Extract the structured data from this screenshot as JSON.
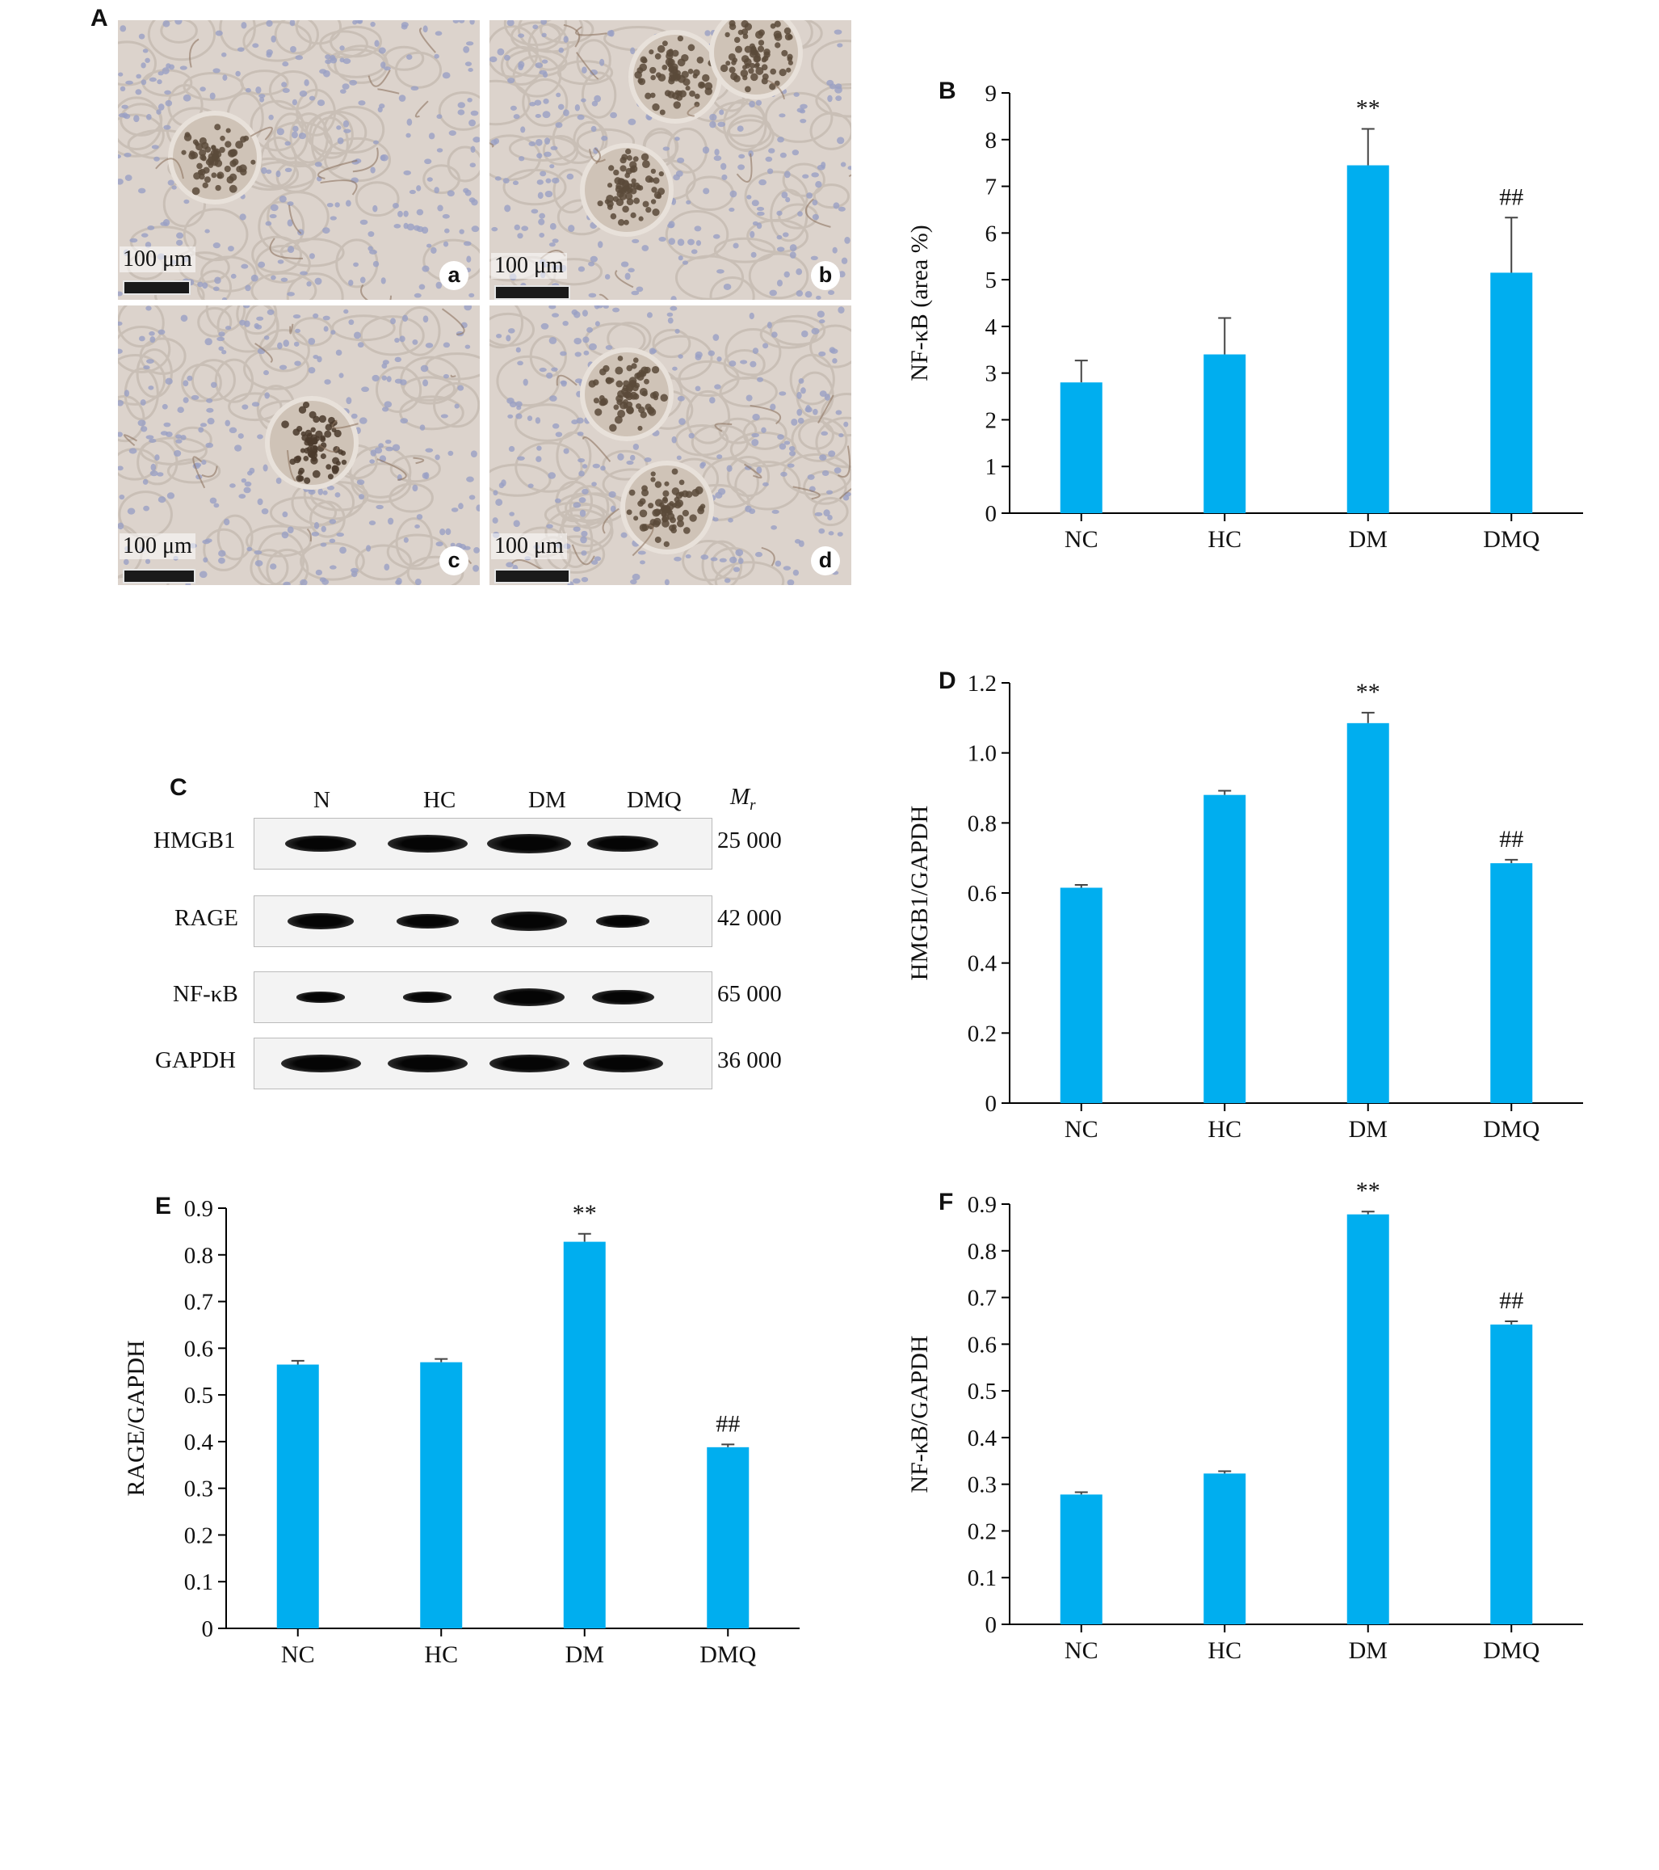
{
  "panel_a": {
    "letter": "A",
    "images": [
      {
        "scale_label": "100 μm",
        "sub_label": "a"
      },
      {
        "scale_label": "100 μm",
        "sub_label": "b"
      },
      {
        "scale_label": "100 μm",
        "sub_label": "c"
      },
      {
        "scale_label": "100 μm",
        "sub_label": "d"
      }
    ]
  },
  "panel_c": {
    "letter": "C",
    "lanes": [
      "N",
      "HC",
      "DM",
      "DMQ"
    ],
    "mr_label": "M",
    "mr_sub": "r",
    "rows": [
      {
        "protein": "HMGB1",
        "mr": "25 000",
        "band_widths": [
          0.8,
          0.9,
          0.95,
          0.8
        ],
        "band_heights": [
          0.9,
          1.0,
          1.1,
          0.9
        ]
      },
      {
        "protein": "RAGE",
        "mr": "42 000",
        "band_widths": [
          0.75,
          0.7,
          0.85,
          0.6
        ],
        "band_heights": [
          0.9,
          0.8,
          1.1,
          0.7
        ]
      },
      {
        "protein": "NF-κB",
        "mr": "65 000",
        "band_widths": [
          0.55,
          0.55,
          0.8,
          0.7
        ],
        "band_heights": [
          0.6,
          0.6,
          1.0,
          0.85
        ]
      },
      {
        "protein": "GAPDH",
        "mr": "36 000",
        "band_widths": [
          0.9,
          0.9,
          0.9,
          0.9
        ],
        "band_heights": [
          1.0,
          1.0,
          1.0,
          1.0
        ]
      }
    ]
  },
  "colors": {
    "bar": "#00AEEF",
    "axis": "#000000"
  },
  "chart_data": [
    {
      "id": "B",
      "letter": "B",
      "type": "bar",
      "categories": [
        "NC",
        "HC",
        "DM",
        "DMQ"
      ],
      "values": [
        2.8,
        3.4,
        7.45,
        5.15
      ],
      "errors": [
        0.47,
        0.78,
        0.78,
        1.18
      ],
      "annotations": [
        "",
        "",
        "**",
        "##"
      ],
      "ylabel": "NF-κB (area %)",
      "ylim": [
        0,
        9
      ],
      "yticks": [
        "0",
        "1",
        "2",
        "3",
        "4",
        "5",
        "6",
        "7",
        "8",
        "9"
      ],
      "tick_values": [
        0,
        1,
        2,
        3,
        4,
        5,
        6,
        7,
        8,
        9
      ],
      "grid": false
    },
    {
      "id": "D",
      "letter": "D",
      "type": "bar",
      "categories": [
        "NC",
        "HC",
        "DM",
        "DMQ"
      ],
      "values": [
        0.615,
        0.88,
        1.085,
        0.685
      ],
      "errors": [
        0.008,
        0.012,
        0.03,
        0.01
      ],
      "annotations": [
        "",
        "",
        "**",
        "##"
      ],
      "ylabel": "HMGB1/GAPDH",
      "ylim": [
        0,
        1.2
      ],
      "yticks": [
        "0",
        "0.2",
        "0.4",
        "0.6",
        "0.8",
        "1.0",
        "1.2"
      ],
      "tick_values": [
        0,
        0.2,
        0.4,
        0.6,
        0.8,
        1.0,
        1.2
      ],
      "grid": false
    },
    {
      "id": "E",
      "letter": "E",
      "type": "bar",
      "categories": [
        "NC",
        "HC",
        "DM",
        "DMQ"
      ],
      "values": [
        0.565,
        0.57,
        0.828,
        0.388
      ],
      "errors": [
        0.008,
        0.007,
        0.017,
        0.006
      ],
      "annotations": [
        "",
        "",
        "**",
        "##"
      ],
      "ylabel": "RAGE/GAPDH",
      "ylim": [
        0,
        0.9
      ],
      "yticks": [
        "0",
        "0.1",
        "0.2",
        "0.3",
        "0.4",
        "0.5",
        "0.6",
        "0.7",
        "0.8",
        "0.9"
      ],
      "tick_values": [
        0,
        0.1,
        0.2,
        0.3,
        0.4,
        0.5,
        0.6,
        0.7,
        0.8,
        0.9
      ],
      "grid": false
    },
    {
      "id": "F",
      "letter": "F",
      "type": "bar",
      "categories": [
        "NC",
        "HC",
        "DM",
        "DMQ"
      ],
      "values": [
        0.278,
        0.323,
        0.878,
        0.642
      ],
      "errors": [
        0.005,
        0.005,
        0.006,
        0.007
      ],
      "annotations": [
        "",
        "",
        "**",
        "##"
      ],
      "ylabel": "NF-κB/GAPDH",
      "ylim": [
        0,
        0.9
      ],
      "yticks": [
        "0",
        "0.1",
        "0.2",
        "0.3",
        "0.4",
        "0.5",
        "0.6",
        "0.7",
        "0.8",
        "0.9"
      ],
      "tick_values": [
        0,
        0.1,
        0.2,
        0.3,
        0.4,
        0.5,
        0.6,
        0.7,
        0.8,
        0.9
      ],
      "grid": false
    }
  ]
}
